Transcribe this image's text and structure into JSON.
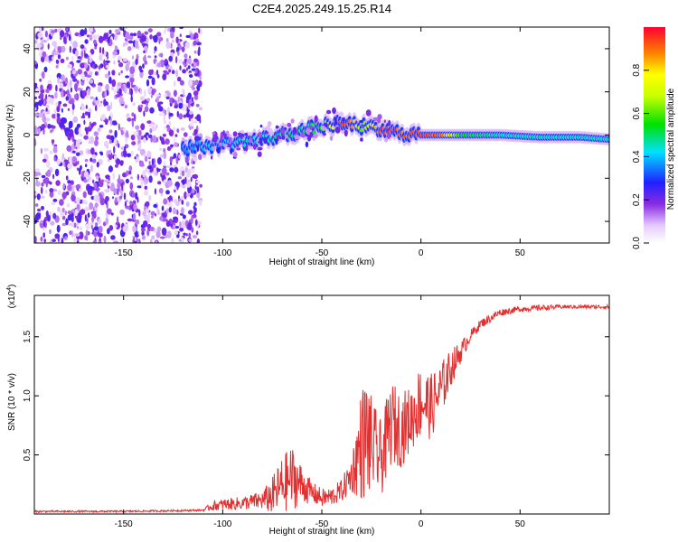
{
  "title": "C2E4.2025.249.15.25.R14",
  "colors": {
    "snr_line": "#e03030",
    "axis": "#000000"
  },
  "chart_data": [
    {
      "type": "heatmap",
      "title": "C2E4.2025.249.15.25.R14",
      "xlabel": "Height of straight line (km)",
      "ylabel": "Frequency (Hz)",
      "xlim": [
        -195,
        95
      ],
      "ylim": [
        -50,
        50
      ],
      "xticks": [
        -150,
        -100,
        -50,
        0,
        50
      ],
      "yticks": [
        40,
        20,
        0,
        -20,
        -40
      ],
      "colorbar": {
        "label": "Normalized spectral amplitude",
        "range": [
          0.0,
          1.0
        ],
        "ticks": [
          "0.0",
          "0.2",
          "0.4",
          "0.6",
          "0.8"
        ],
        "tick_values": [
          0.0,
          0.2,
          0.4,
          0.6,
          0.8
        ]
      },
      "noise_region_x": [
        -195,
        -115
      ],
      "signal_track": {
        "x": [
          -120,
          -110,
          -100,
          -90,
          -80,
          -70,
          -60,
          -50,
          -45,
          -40,
          -35,
          -30,
          -25,
          -20,
          -10,
          0,
          10,
          20,
          40,
          60,
          80,
          95
        ],
        "freq": [
          -6,
          -5,
          -4,
          -3,
          -2,
          0,
          2,
          4,
          5,
          5,
          5,
          4,
          3,
          2,
          1,
          0,
          0,
          0,
          0,
          -1,
          -1,
          -2
        ],
        "amplitude": [
          0.35,
          0.4,
          0.4,
          0.45,
          0.45,
          0.5,
          0.5,
          0.55,
          0.75,
          0.95,
          0.9,
          0.6,
          0.75,
          0.95,
          0.9,
          0.95,
          0.9,
          0.55,
          0.45,
          0.45,
          0.45,
          0.45
        ]
      }
    },
    {
      "type": "line",
      "xlabel": "Height of straight line (km)",
      "ylabel": "SNR (10 * v/v)",
      "yscale_label_base": "(x10",
      "yscale_label_exp": "4",
      "yscale_label_close": ")",
      "xlim": [
        -195,
        95
      ],
      "ylim": [
        0,
        1.85
      ],
      "xticks": [
        -150,
        -100,
        -50,
        0,
        50
      ],
      "yticks": [
        0.5,
        1.0,
        1.5
      ],
      "ytick_labels": [
        "0.5",
        "1.0",
        "1.5"
      ],
      "series": [
        {
          "name": "SNR",
          "x": [
            -195,
            -150,
            -110,
            -105,
            -100,
            -90,
            -80,
            -75,
            -70,
            -65,
            -60,
            -55,
            -50,
            -45,
            -40,
            -35,
            -30,
            -27,
            -25,
            -20,
            -15,
            -10,
            -5,
            0,
            5,
            10,
            15,
            20,
            25,
            30,
            40,
            50,
            60,
            70,
            80,
            90,
            95
          ],
          "base": [
            0.02,
            0.02,
            0.03,
            0.06,
            0.07,
            0.08,
            0.1,
            0.12,
            0.2,
            0.25,
            0.22,
            0.16,
            0.12,
            0.13,
            0.18,
            0.3,
            0.5,
            0.55,
            0.5,
            0.4,
            0.7,
            0.65,
            0.75,
            0.9,
            0.85,
            1.0,
            1.2,
            1.35,
            1.5,
            1.6,
            1.7,
            1.73,
            1.74,
            1.75,
            1.75,
            1.75,
            1.75
          ],
          "noise": [
            0.01,
            0.01,
            0.01,
            0.05,
            0.06,
            0.07,
            0.1,
            0.2,
            0.3,
            0.35,
            0.2,
            0.12,
            0.1,
            0.1,
            0.12,
            0.2,
            0.6,
            0.7,
            0.5,
            0.4,
            0.45,
            0.4,
            0.35,
            0.4,
            0.35,
            0.3,
            0.2,
            0.12,
            0.06,
            0.05,
            0.04,
            0.03,
            0.03,
            0.02,
            0.02,
            0.02,
            0.02
          ]
        }
      ]
    }
  ]
}
